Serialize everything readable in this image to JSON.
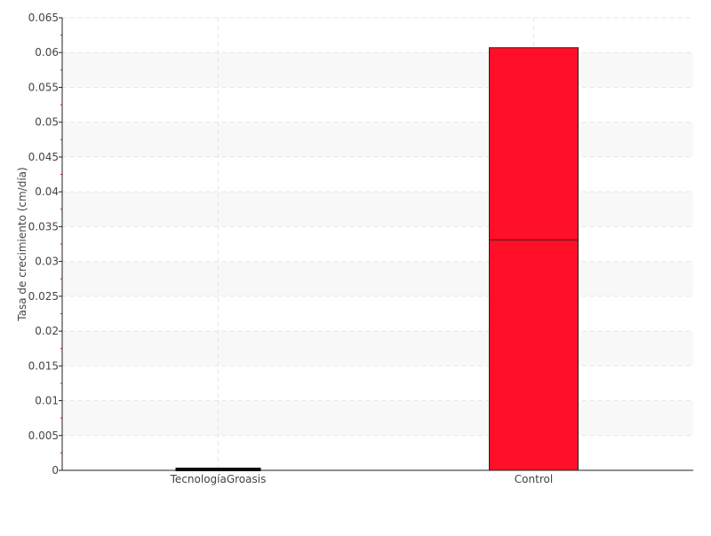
{
  "chart_data": {
    "type": "boxplot",
    "title": "",
    "xlabel": "",
    "ylabel": "Tasa de crecimiento (cm/día)",
    "ylim": [
      0,
      0.065
    ],
    "yticks": [
      "0",
      "0.005",
      "0.01",
      "0.015",
      "0.02",
      "0.025",
      "0.03",
      "0.035",
      "0.04",
      "0.045",
      "0.05",
      "0.055",
      "0.06",
      "0.065"
    ],
    "ytick_values": [
      0,
      0.005,
      0.01,
      0.015,
      0.02,
      0.025,
      0.03,
      0.035,
      0.04,
      0.045,
      0.05,
      0.055,
      0.06,
      0.065
    ],
    "categories": [
      "TecnologíaGroasis",
      "Control"
    ],
    "boxes": [
      {
        "category": "TecnologíaGroasis",
        "q1": 0,
        "median": 0,
        "q3": 0,
        "color": "#000000"
      },
      {
        "category": "Control",
        "q1": 0,
        "median": 0.0331,
        "q3": 0.0607,
        "color": "#ff1028"
      }
    ],
    "grid": true,
    "alternating_bands": true,
    "minor_tick_color": "#ff0000"
  }
}
